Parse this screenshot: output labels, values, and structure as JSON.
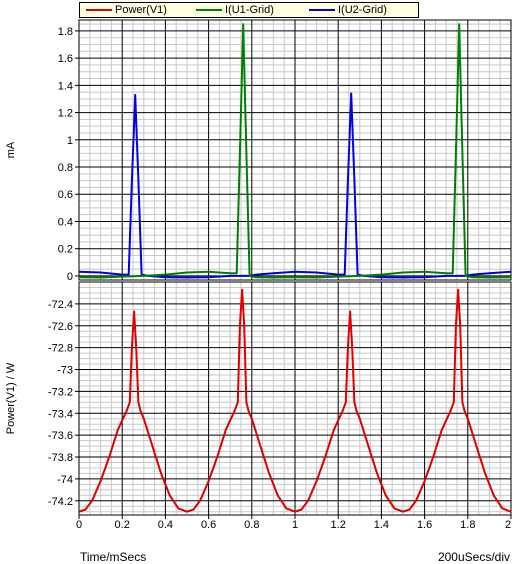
{
  "legend": [
    {
      "label": "Power(V1)",
      "color": "#e00000"
    },
    {
      "label": "I(U1-Grid)",
      "color": "#008000"
    },
    {
      "label": "I(U2-Grid)",
      "color": "#0000e0"
    }
  ],
  "footer": {
    "left": "Time/mSecs",
    "right": "200uSecs/div"
  },
  "chart_data": [
    {
      "type": "line",
      "ylabel": "mA",
      "xlim": [
        0,
        2
      ],
      "ylim": [
        -0.03,
        1.88
      ],
      "yticks": [
        "1.8",
        "1.6",
        "1.4",
        "1.2",
        "1",
        "0.8",
        "0.6",
        "0.4",
        "0.2",
        "0"
      ],
      "ytick_values": [
        1.8,
        1.6,
        1.4,
        1.2,
        1,
        0.8,
        0.6,
        0.4,
        0.2,
        0
      ],
      "grid": true,
      "series": [
        {
          "name": "I(U2-Grid)",
          "color": "#0000e0",
          "x": [
            0,
            0.1,
            0.2,
            0.23,
            0.245,
            0.26,
            0.275,
            0.29,
            0.32,
            0.4,
            0.5,
            0.6,
            0.7,
            0.73,
            0.745,
            0.76,
            0.775,
            0.79,
            0.82,
            0.9,
            1.0,
            1.1,
            1.2,
            1.23,
            1.245,
            1.26,
            1.275,
            1.29,
            1.32,
            1.4,
            1.5,
            1.6,
            1.7,
            1.73,
            1.745,
            1.76,
            1.775,
            1.79,
            1.82,
            1.9,
            2.0
          ],
          "y": [
            0.03,
            0.025,
            0.01,
            0.01,
            0.7,
            1.33,
            0.7,
            0.01,
            0.0,
            -0.01,
            -0.012,
            -0.01,
            0.0,
            0.0,
            0.0,
            0.0,
            0.0,
            0.0,
            0.01,
            0.02,
            0.03,
            0.025,
            0.01,
            0.01,
            0.7,
            1.34,
            0.7,
            0.01,
            0.0,
            -0.01,
            -0.012,
            -0.01,
            0.0,
            0.0,
            0.0,
            0.0,
            0.0,
            0.0,
            0.01,
            0.02,
            0.03
          ]
        },
        {
          "name": "I(U1-Grid)",
          "color": "#008000",
          "x": [
            0,
            0.1,
            0.2,
            0.3,
            0.4,
            0.5,
            0.6,
            0.7,
            0.73,
            0.745,
            0.76,
            0.775,
            0.79,
            0.82,
            0.9,
            1.0,
            1.1,
            1.2,
            1.3,
            1.4,
            1.5,
            1.6,
            1.7,
            1.73,
            1.745,
            1.76,
            1.775,
            1.79,
            1.82,
            1.9,
            2.0
          ],
          "y": [
            -0.01,
            -0.012,
            -0.005,
            0.0,
            0.01,
            0.025,
            0.03,
            0.02,
            0.02,
            0.9,
            1.85,
            0.9,
            0.0,
            -0.01,
            -0.012,
            -0.01,
            -0.012,
            -0.005,
            0.0,
            0.01,
            0.025,
            0.03,
            0.02,
            0.02,
            0.9,
            1.85,
            0.9,
            0.0,
            -0.01,
            -0.012,
            -0.01
          ]
        }
      ]
    },
    {
      "type": "line",
      "ylabel": "Power(V1) / W",
      "xlabel": "Time/mSecs",
      "xlim": [
        0,
        2
      ],
      "ylim": [
        -74.33,
        -72.2
      ],
      "xticks": [
        "0",
        "0.2",
        "0.4",
        "0.6",
        "0.8",
        "1",
        "1.2",
        "1.4",
        "1.6",
        "1.8",
        "2"
      ],
      "xtick_values": [
        0,
        0.2,
        0.4,
        0.6,
        0.8,
        1,
        1.2,
        1.4,
        1.6,
        1.8,
        2
      ],
      "yticks": [
        "-72.4",
        "-72.6",
        "-72.8",
        "-73",
        "-73.2",
        "-73.4",
        "-73.6",
        "-73.8",
        "-74",
        "-74.2"
      ],
      "ytick_values": [
        -72.4,
        -72.6,
        -72.8,
        -73,
        -73.2,
        -73.4,
        -73.6,
        -73.8,
        -74,
        -74.2
      ],
      "grid": true,
      "series": [
        {
          "name": "Power(V1)",
          "color": "#e00000",
          "x": [
            0,
            0.03,
            0.06,
            0.1,
            0.14,
            0.18,
            0.22,
            0.235,
            0.245,
            0.255,
            0.265,
            0.275,
            0.285,
            0.3,
            0.34,
            0.38,
            0.42,
            0.46,
            0.5,
            0.53,
            0.56,
            0.6,
            0.64,
            0.68,
            0.72,
            0.735,
            0.745,
            0.755,
            0.765,
            0.775,
            0.785,
            0.8,
            0.84,
            0.88,
            0.92,
            0.96,
            1.0,
            1.03,
            1.06,
            1.1,
            1.14,
            1.18,
            1.22,
            1.235,
            1.245,
            1.255,
            1.265,
            1.275,
            1.285,
            1.3,
            1.34,
            1.38,
            1.42,
            1.46,
            1.5,
            1.53,
            1.56,
            1.6,
            1.64,
            1.68,
            1.72,
            1.735,
            1.745,
            1.755,
            1.765,
            1.775,
            1.785,
            1.8,
            1.84,
            1.88,
            1.92,
            1.96,
            2.0
          ],
          "y": [
            -74.3,
            -74.28,
            -74.2,
            -74.02,
            -73.8,
            -73.55,
            -73.38,
            -73.3,
            -72.8,
            -72.47,
            -72.8,
            -73.3,
            -73.38,
            -73.45,
            -73.7,
            -73.95,
            -74.15,
            -74.27,
            -74.3,
            -74.28,
            -74.2,
            -74.02,
            -73.8,
            -73.55,
            -73.38,
            -73.3,
            -72.6,
            -72.27,
            -72.6,
            -73.3,
            -73.38,
            -73.45,
            -73.7,
            -73.95,
            -74.15,
            -74.27,
            -74.3,
            -74.28,
            -74.2,
            -74.02,
            -73.8,
            -73.55,
            -73.38,
            -73.3,
            -72.8,
            -72.47,
            -72.8,
            -73.3,
            -73.38,
            -73.45,
            -73.7,
            -73.95,
            -74.15,
            -74.27,
            -74.3,
            -74.28,
            -74.2,
            -74.02,
            -73.8,
            -73.55,
            -73.38,
            -73.3,
            -72.6,
            -72.27,
            -72.6,
            -73.3,
            -73.38,
            -73.45,
            -73.7,
            -73.95,
            -74.15,
            -74.27,
            -74.3
          ]
        }
      ]
    }
  ]
}
